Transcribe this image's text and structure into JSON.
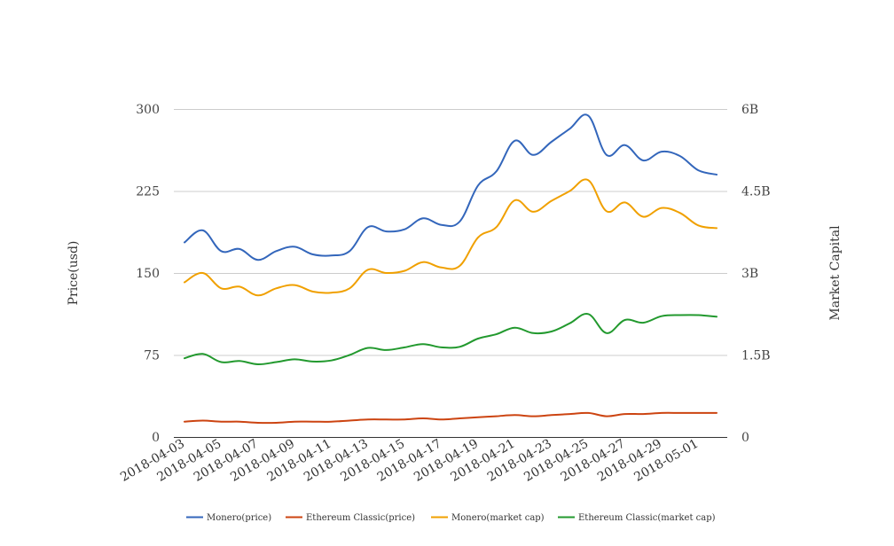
{
  "chart_data": {
    "type": "line",
    "smooth": true,
    "grid": true,
    "legend_position": "bottom",
    "categories": [
      "2018-04-03",
      "2018-04-04",
      "2018-04-05",
      "2018-04-06",
      "2018-04-07",
      "2018-04-08",
      "2018-04-09",
      "2018-04-10",
      "2018-04-11",
      "2018-04-12",
      "2018-04-13",
      "2018-04-14",
      "2018-04-15",
      "2018-04-16",
      "2018-04-17",
      "2018-04-18",
      "2018-04-19",
      "2018-04-20",
      "2018-04-21",
      "2018-04-22",
      "2018-04-23",
      "2018-04-24",
      "2018-04-25",
      "2018-04-26",
      "2018-04-27",
      "2018-04-28",
      "2018-04-29",
      "2018-04-30",
      "2018-05-01",
      "2018-05-02"
    ],
    "x_tick_labels": [
      "2018-04-03",
      "2018-04-05",
      "2018-04-07",
      "2018-04-09",
      "2018-04-11",
      "2018-04-13",
      "2018-04-15",
      "2018-04-17",
      "2018-04-19",
      "2018-04-21",
      "2018-04-23",
      "2018-04-25",
      "2018-04-27",
      "2018-04-29",
      "2018-05-01"
    ],
    "y_left": {
      "label": "Price(usd)",
      "range": [
        0,
        300
      ],
      "ticks": [
        "0",
        "75",
        "150",
        "225",
        "300"
      ]
    },
    "y_right": {
      "label": "Market Capital",
      "range": [
        0,
        6000000000
      ],
      "ticks": [
        "0",
        "1.5B",
        "3B",
        "4.5B",
        "6B"
      ]
    },
    "series": [
      {
        "name": "Monero(price)",
        "axis": "left",
        "color": "#3366bb",
        "values": [
          178,
          189,
          170,
          172,
          162,
          170,
          174,
          167,
          166,
          170,
          192,
          188,
          190,
          200,
          194,
          197,
          230,
          243,
          271,
          258,
          270,
          282,
          294,
          258,
          267,
          253,
          261,
          257,
          244,
          240
        ]
      },
      {
        "name": "Ethereum Classic(price)",
        "axis": "left",
        "color": "#cc4411",
        "values": [
          14,
          15,
          14,
          14,
          13,
          13,
          14,
          14,
          14,
          15,
          16,
          16,
          16,
          17,
          16,
          17,
          18,
          19,
          20,
          19,
          20,
          21,
          22,
          19,
          21,
          21,
          22,
          22,
          22,
          22
        ]
      },
      {
        "name": "Monero(market cap)",
        "axis": "right",
        "color": "#f0a000",
        "values": [
          2830000000,
          3000000000,
          2720000000,
          2750000000,
          2590000000,
          2720000000,
          2780000000,
          2660000000,
          2640000000,
          2720000000,
          3060000000,
          3000000000,
          3040000000,
          3200000000,
          3100000000,
          3130000000,
          3650000000,
          3840000000,
          4330000000,
          4120000000,
          4320000000,
          4500000000,
          4700000000,
          4130000000,
          4290000000,
          4030000000,
          4190000000,
          4100000000,
          3870000000,
          3820000000
        ]
      },
      {
        "name": "Ethereum Classic(market cap)",
        "axis": "right",
        "color": "#22992e",
        "values": [
          1440000000,
          1520000000,
          1370000000,
          1390000000,
          1330000000,
          1370000000,
          1420000000,
          1380000000,
          1400000000,
          1500000000,
          1630000000,
          1590000000,
          1640000000,
          1700000000,
          1640000000,
          1650000000,
          1800000000,
          1880000000,
          2000000000,
          1900000000,
          1930000000,
          2080000000,
          2250000000,
          1900000000,
          2140000000,
          2090000000,
          2210000000,
          2230000000,
          2230000000,
          2200000000
        ]
      }
    ]
  }
}
